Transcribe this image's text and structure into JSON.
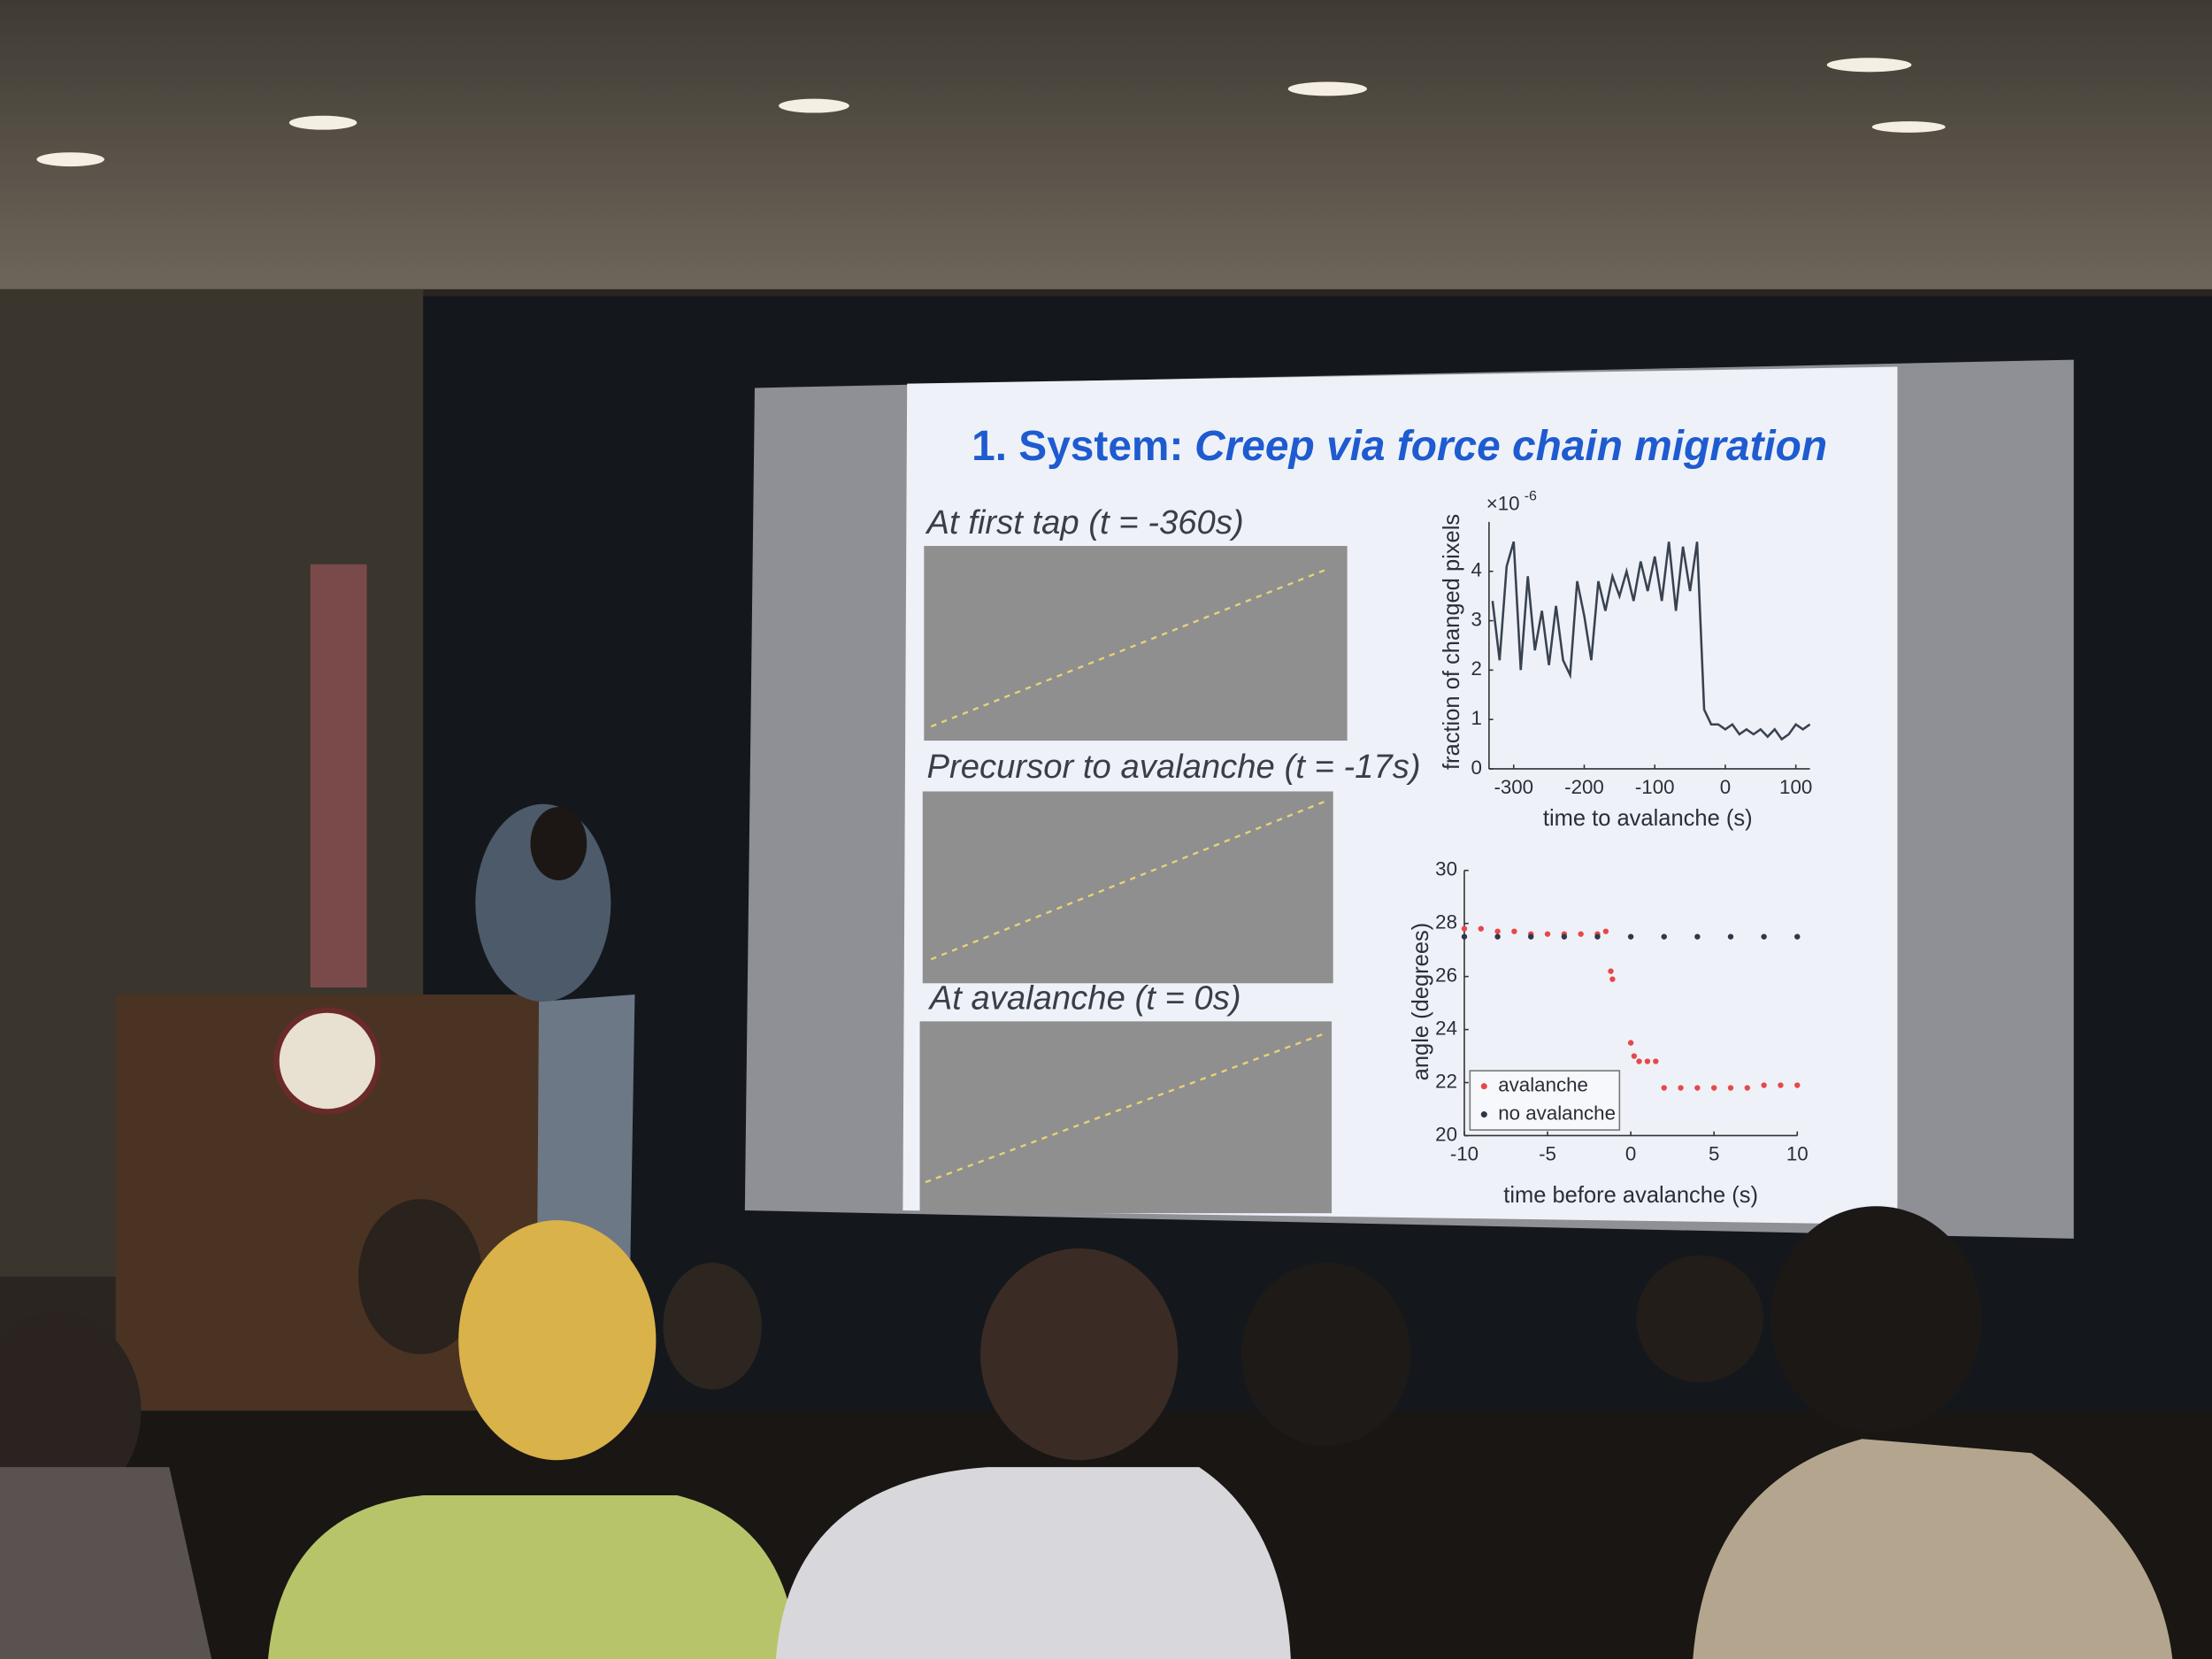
{
  "slide": {
    "title_lead": "1. System:",
    "title_main": "Creep via force chain migration",
    "panels": [
      {
        "caption": "At first tap (t = -360s)"
      },
      {
        "caption": "Precursor to avalanche (t = -17s)"
      },
      {
        "caption": "At avalanche (t = 0s)"
      }
    ]
  },
  "chart_data": [
    {
      "type": "line",
      "xlabel": "time to avalanche (s)",
      "ylabel": "fraction of changed pixels",
      "y_multiplier": "×10",
      "y_multiplier_exponent": "-6",
      "x": [
        -330,
        -320,
        -310,
        -300,
        -290,
        -280,
        -270,
        -260,
        -250,
        -240,
        -230,
        -220,
        -210,
        -200,
        -190,
        -180,
        -170,
        -160,
        -150,
        -140,
        -130,
        -120,
        -110,
        -100,
        -90,
        -80,
        -70,
        -60,
        -50,
        -40,
        -30,
        -20,
        -10,
        0,
        10,
        20,
        30,
        40,
        50,
        60,
        70,
        80,
        90,
        100,
        110,
        120
      ],
      "series": [
        {
          "color": "#3a4250",
          "values": [
            3.4,
            2.2,
            4.1,
            4.6,
            2.0,
            3.9,
            2.4,
            3.2,
            2.1,
            3.3,
            2.2,
            1.9,
            3.8,
            3.1,
            2.2,
            3.8,
            3.2,
            3.9,
            3.5,
            4.0,
            3.4,
            4.2,
            3.6,
            4.3,
            3.4,
            4.6,
            3.2,
            4.5,
            3.6,
            4.6,
            1.2,
            0.9,
            0.9,
            0.8,
            0.9,
            0.7,
            0.8,
            0.7,
            0.8,
            0.65,
            0.8,
            0.6,
            0.7,
            0.9,
            0.8,
            0.9
          ]
        }
      ],
      "xlim": [
        -335,
        120
      ],
      "xticks": [
        -300,
        -200,
        -100,
        0,
        100
      ],
      "ylim": [
        0,
        5
      ],
      "yticks": [
        0,
        1,
        2,
        3,
        4
      ]
    },
    {
      "type": "scatter",
      "xlabel": "time before avalanche (s)",
      "ylabel": "angle (degrees)",
      "series": [
        {
          "name": "avalanche",
          "color": "#e8474a",
          "x": [
            -10,
            -9,
            -8,
            -7,
            -6,
            -5,
            -4,
            -3,
            -2,
            -1.5,
            -1.2,
            -1.1,
            0,
            0.2,
            0.5,
            1,
            1.5,
            2,
            3,
            4,
            5,
            6,
            7,
            8,
            9,
            10
          ],
          "values": [
            27.8,
            27.8,
            27.7,
            27.7,
            27.6,
            27.6,
            27.6,
            27.6,
            27.6,
            27.7,
            26.2,
            25.9,
            23.5,
            23.0,
            22.8,
            22.8,
            22.8,
            21.8,
            21.8,
            21.8,
            21.8,
            21.8,
            21.8,
            21.9,
            21.9,
            21.9
          ]
        },
        {
          "name": "no avalanche",
          "color": "#2e3848",
          "x": [
            -10,
            -8,
            -6,
            -4,
            -2,
            0,
            2,
            4,
            6,
            8,
            10
          ],
          "values": [
            27.5,
            27.5,
            27.5,
            27.5,
            27.5,
            27.5,
            27.5,
            27.5,
            27.5,
            27.5,
            27.5
          ]
        }
      ],
      "xlim": [
        -10,
        10
      ],
      "xticks": [
        -10,
        -5,
        0,
        5,
        10
      ],
      "ylim": [
        20,
        30
      ],
      "yticks": [
        20,
        22,
        24,
        26,
        28,
        30
      ]
    }
  ]
}
